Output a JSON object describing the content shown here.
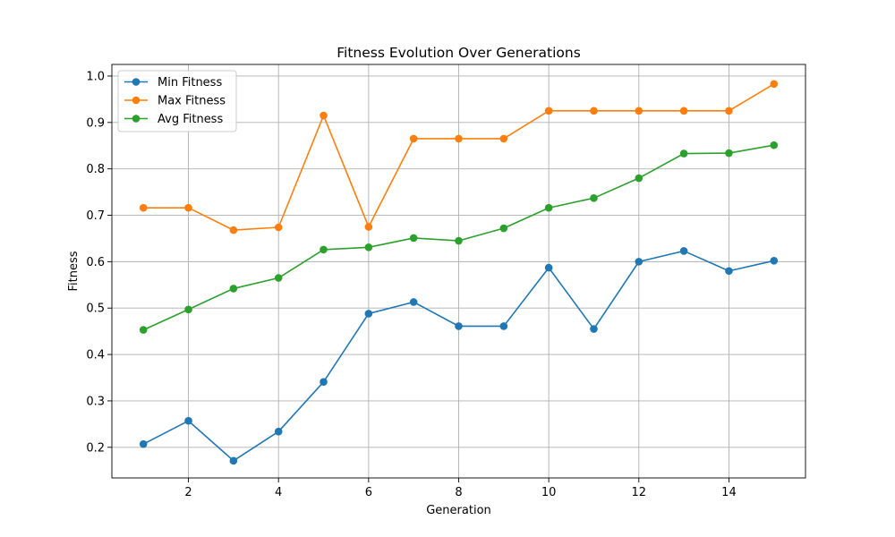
{
  "chart_data": {
    "type": "line",
    "title": "Fitness Evolution Over Generations",
    "xlabel": "Generation",
    "ylabel": "Fitness",
    "xlim": [
      0.3,
      15.7
    ],
    "ylim": [
      0.134,
      1.025
    ],
    "x_ticks": [
      2,
      4,
      6,
      8,
      10,
      12,
      14
    ],
    "x_tick_labels": [
      "2",
      "4",
      "6",
      "8",
      "10",
      "12",
      "14"
    ],
    "y_ticks": [
      0.2,
      0.3,
      0.4,
      0.5,
      0.6,
      0.7,
      0.8,
      0.9,
      1.0
    ],
    "y_tick_labels": [
      "0.2",
      "0.3",
      "0.4",
      "0.5",
      "0.6",
      "0.7",
      "0.8",
      "0.9",
      "1.0"
    ],
    "grid": true,
    "legend_position": "upper-left",
    "x": [
      1,
      2,
      3,
      4,
      5,
      6,
      7,
      8,
      9,
      10,
      11,
      12,
      13,
      14,
      15
    ],
    "series": [
      {
        "name": "Min Fitness",
        "color": "#1f77b4",
        "marker": "circle",
        "values": [
          0.207,
          0.257,
          0.171,
          0.234,
          0.341,
          0.488,
          0.513,
          0.461,
          0.461,
          0.587,
          0.455,
          0.6,
          0.623,
          0.58,
          0.602
        ]
      },
      {
        "name": "Max Fitness",
        "color": "#ff7f0e",
        "marker": "circle",
        "values": [
          0.716,
          0.716,
          0.668,
          0.674,
          0.915,
          0.675,
          0.865,
          0.865,
          0.865,
          0.925,
          0.925,
          0.925,
          0.925,
          0.925,
          0.983
        ]
      },
      {
        "name": "Avg Fitness",
        "color": "#2ca02c",
        "marker": "circle",
        "values": [
          0.453,
          0.497,
          0.542,
          0.565,
          0.626,
          0.631,
          0.651,
          0.645,
          0.672,
          0.716,
          0.737,
          0.78,
          0.833,
          0.834,
          0.851
        ]
      }
    ]
  }
}
